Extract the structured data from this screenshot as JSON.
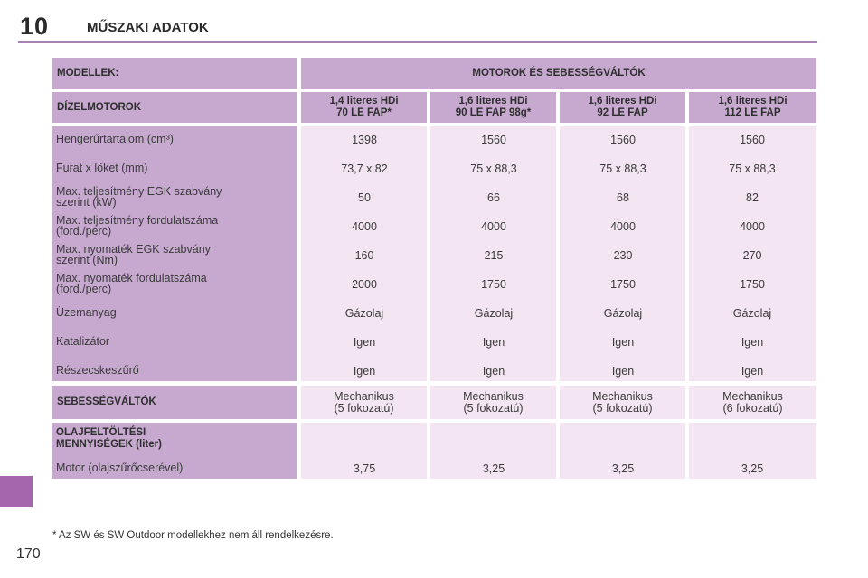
{
  "header": {
    "chapter": "10",
    "title": "MŰSZAKI ADATOK"
  },
  "table": {
    "models_label": "MODELLEK:",
    "engines_label": "MOTOROK ÉS SEBESSÉGVÁLTÓK",
    "diesel_label": "DÍZELMOTOROK",
    "engines": [
      {
        "line1": "1,4 literes HDi",
        "line2": "70 LE FAP*"
      },
      {
        "line1": "1,6 literes HDi",
        "line2": "90 LE FAP 98g*"
      },
      {
        "line1": "1,6 literes HDi",
        "line2": "92 LE FAP"
      },
      {
        "line1": "1,6 literes HDi",
        "line2": "112 LE FAP"
      }
    ],
    "spec_rows": [
      {
        "label1": "Hengerűrtartalom (cm³)",
        "label2": "",
        "values": [
          "1398",
          "1560",
          "1560",
          "1560"
        ]
      },
      {
        "label1": "Furat x löket (mm)",
        "label2": "",
        "values": [
          "73,7 x 82",
          "75 x 88,3",
          "75 x 88,3",
          "75 x 88,3"
        ]
      },
      {
        "label1": "Max. teljesítmény EGK szabvány",
        "label2": "szerint (kW)",
        "values": [
          "50",
          "66",
          "68",
          "82"
        ]
      },
      {
        "label1": "Max. teljesítmény fordulatszáma",
        "label2": "(ford./perc)",
        "values": [
          "4000",
          "4000",
          "4000",
          "4000"
        ]
      },
      {
        "label1": "Max. nyomaték EGK szabvány",
        "label2": "szerint (Nm)",
        "values": [
          "160",
          "215",
          "230",
          "270"
        ]
      },
      {
        "label1": "Max. nyomaték fordulatszáma",
        "label2": "(ford./perc)",
        "values": [
          "2000",
          "1750",
          "1750",
          "1750"
        ]
      },
      {
        "label1": "Üzemanyag",
        "label2": "",
        "values": [
          "Gázolaj",
          "Gázolaj",
          "Gázolaj",
          "Gázolaj"
        ]
      },
      {
        "label1": "Katalizátor",
        "label2": "",
        "values": [
          "Igen",
          "Igen",
          "Igen",
          "Igen"
        ]
      },
      {
        "label1": "Részecskeszűrő",
        "label2": "",
        "values": [
          "Igen",
          "Igen",
          "Igen",
          "Igen"
        ]
      }
    ],
    "gearbox_label": "SEBESSÉGVÁLTÓK",
    "gearboxes": [
      {
        "line1": "Mechanikus",
        "line2": "(5 fokozatú)"
      },
      {
        "line1": "Mechanikus",
        "line2": "(5 fokozatú)"
      },
      {
        "line1": "Mechanikus",
        "line2": "(5 fokozatú)"
      },
      {
        "line1": "Mechanikus",
        "line2": "(6 fokozatú)"
      }
    ],
    "oil_label1": "OLAJFELTÖLTÉSI",
    "oil_label2": "MENNYISÉGEK (liter)",
    "oil_row_label": "Motor (olajszűrőcserével)",
    "oil_values": [
      "3,75",
      "3,25",
      "3,25",
      "3,25"
    ]
  },
  "footnote": "* Az SW és SW Outdoor modellekhez nem áll rendelkezésre.",
  "page_number": "170",
  "colors": {
    "header_bg": "#c7a9d0",
    "value_bg": "#f3e5f1",
    "accent": "#a566ad"
  }
}
